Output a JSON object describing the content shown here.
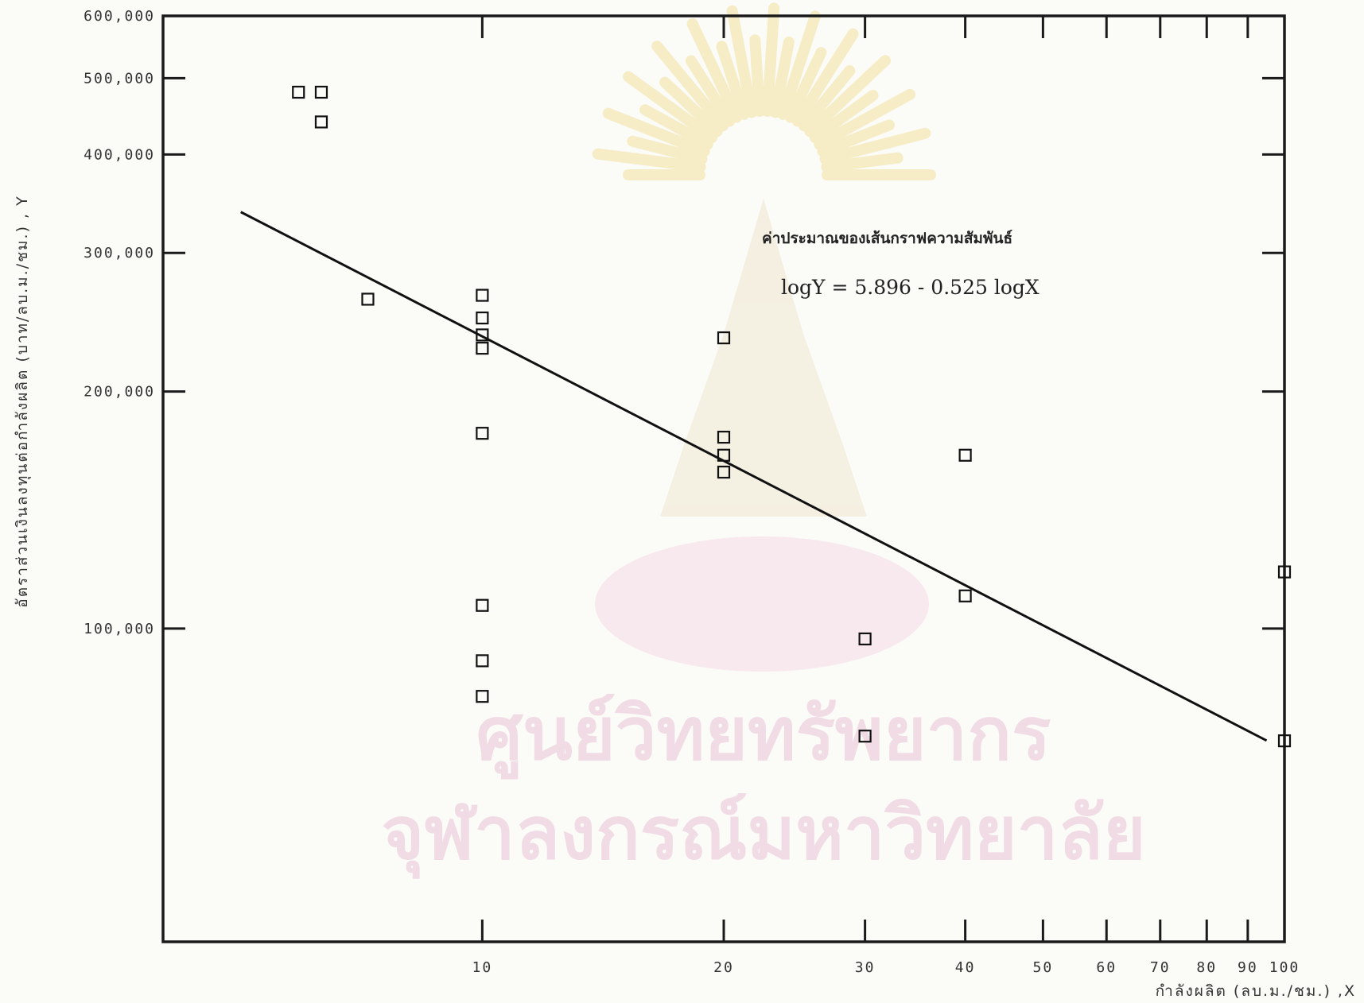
{
  "chart_data": {
    "type": "scatter",
    "xscale": "log",
    "yscale": "log",
    "xlabel": "กำลังผลิต (ลบ.ม./ชม.) ,X",
    "ylabel": "อัตราส่วนเงินลงทุนต่อกำลังผลิต (บาท/ลบ.ม./ชม.) , Y",
    "xlim": [
      4,
      100
    ],
    "ylim": [
      40000,
      600000
    ],
    "x_tick_labels": [
      {
        "value": 10,
        "label": "10"
      },
      {
        "value": 20,
        "label": "20"
      },
      {
        "value": 30,
        "label": "30"
      },
      {
        "value": 40,
        "label": "40"
      },
      {
        "value": 50,
        "label": "50"
      },
      {
        "value": 60,
        "label": "60"
      },
      {
        "value": 70,
        "label": "70"
      },
      {
        "value": 80,
        "label": "80"
      },
      {
        "value": 90,
        "label": "90"
      },
      {
        "value": 100,
        "label": "100"
      }
    ],
    "y_tick_labels": [
      {
        "value": 100000,
        "label": "100,000"
      },
      {
        "value": 200000,
        "label": "200,000"
      },
      {
        "value": 300000,
        "label": "300,000"
      },
      {
        "value": 400000,
        "label": "400,000"
      },
      {
        "value": 500000,
        "label": "500,000"
      },
      {
        "value": 600000,
        "label": "600,000"
      }
    ],
    "points": [
      {
        "x": 5.9,
        "y": 480000
      },
      {
        "x": 6.3,
        "y": 480000
      },
      {
        "x": 6.3,
        "y": 440000
      },
      {
        "x": 7.2,
        "y": 262000
      },
      {
        "x": 10.0,
        "y": 265000
      },
      {
        "x": 10.0,
        "y": 248000
      },
      {
        "x": 10.0,
        "y": 236000
      },
      {
        "x": 10.0,
        "y": 227000
      },
      {
        "x": 10.0,
        "y": 177000
      },
      {
        "x": 10.0,
        "y": 107000
      },
      {
        "x": 10.0,
        "y": 91000
      },
      {
        "x": 10.0,
        "y": 82000
      },
      {
        "x": 20.0,
        "y": 234000
      },
      {
        "x": 20.0,
        "y": 175000
      },
      {
        "x": 20.0,
        "y": 166000
      },
      {
        "x": 20.0,
        "y": 158000
      },
      {
        "x": 30.0,
        "y": 97000
      },
      {
        "x": 30.0,
        "y": 73000
      },
      {
        "x": 40.0,
        "y": 166000
      },
      {
        "x": 40.0,
        "y": 110000
      },
      {
        "x": 100.0,
        "y": 118000
      },
      {
        "x": 100.0,
        "y": 72000
      }
    ],
    "regression": {
      "intercept": 5.896,
      "slope": -0.525,
      "x_from": 5.0,
      "x_to": 95.0
    },
    "annotation": {
      "title": "ค่าประมาณของเส้นกราฟความสัมพันธ์",
      "equation": "logY = 5.896 - 0.525 logX"
    },
    "grid": false,
    "legend": "none"
  },
  "watermark": {
    "line1": "ศูนย์วิทยทรัพยากร",
    "line2": "จุฬาลงกรณ์มหาวิทยาลัย"
  }
}
